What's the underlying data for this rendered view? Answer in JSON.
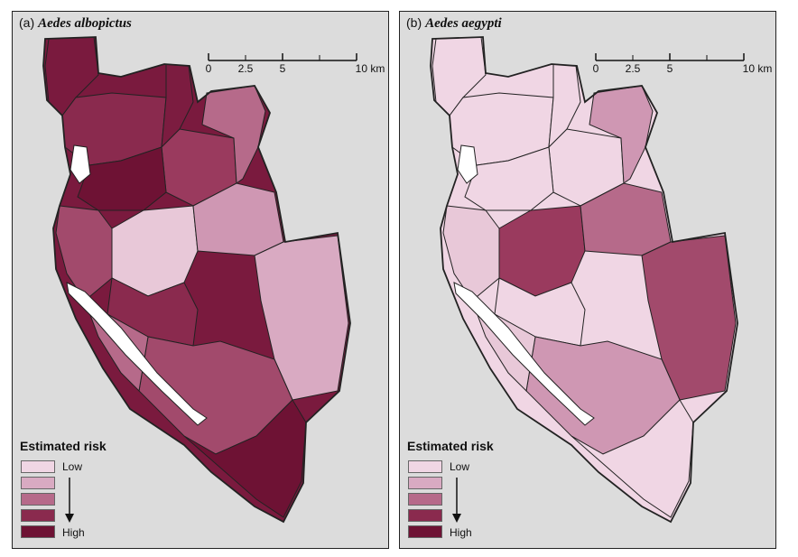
{
  "panels": [
    {
      "label": "(a)",
      "species": "Aedes albopictus",
      "region_colors": [
        "#7a1a3e",
        "#8a2a4e",
        "#7c1c40",
        "#9a3a5e",
        "#b66a8a",
        "#6e1234",
        "#a24a6c",
        "#e8c8d8",
        "#cf97b3",
        "#d9aac2",
        "#8a2a4e",
        "#a24a6c",
        "#6e1234",
        "#b66a8a"
      ]
    },
    {
      "label": "(b)",
      "species": "Aedes aegypti",
      "region_colors": [
        "#f0d6e4",
        "#f0d6e4",
        "#f0d6e4",
        "#f0d6e4",
        "#cf97b3",
        "#f0d6e4",
        "#e8c8d8",
        "#9a3a5e",
        "#b66a8a",
        "#a24a6c",
        "#f0d6e4",
        "#cf97b3",
        "#f0d6e4",
        "#e8c8d8"
      ]
    }
  ],
  "scale_bar": {
    "ticks": [
      "0",
      "2.5",
      "5",
      "10 km"
    ]
  },
  "legend": {
    "title": "Estimated risk",
    "low_label": "Low",
    "high_label": "High",
    "colors": [
      "#f0d6e4",
      "#d9aac2",
      "#b66a8a",
      "#8a2a4e",
      "#6e1234"
    ]
  },
  "colors": {
    "background": "#dcdcdc",
    "land_white": "#ffffff",
    "border": "#222222"
  }
}
